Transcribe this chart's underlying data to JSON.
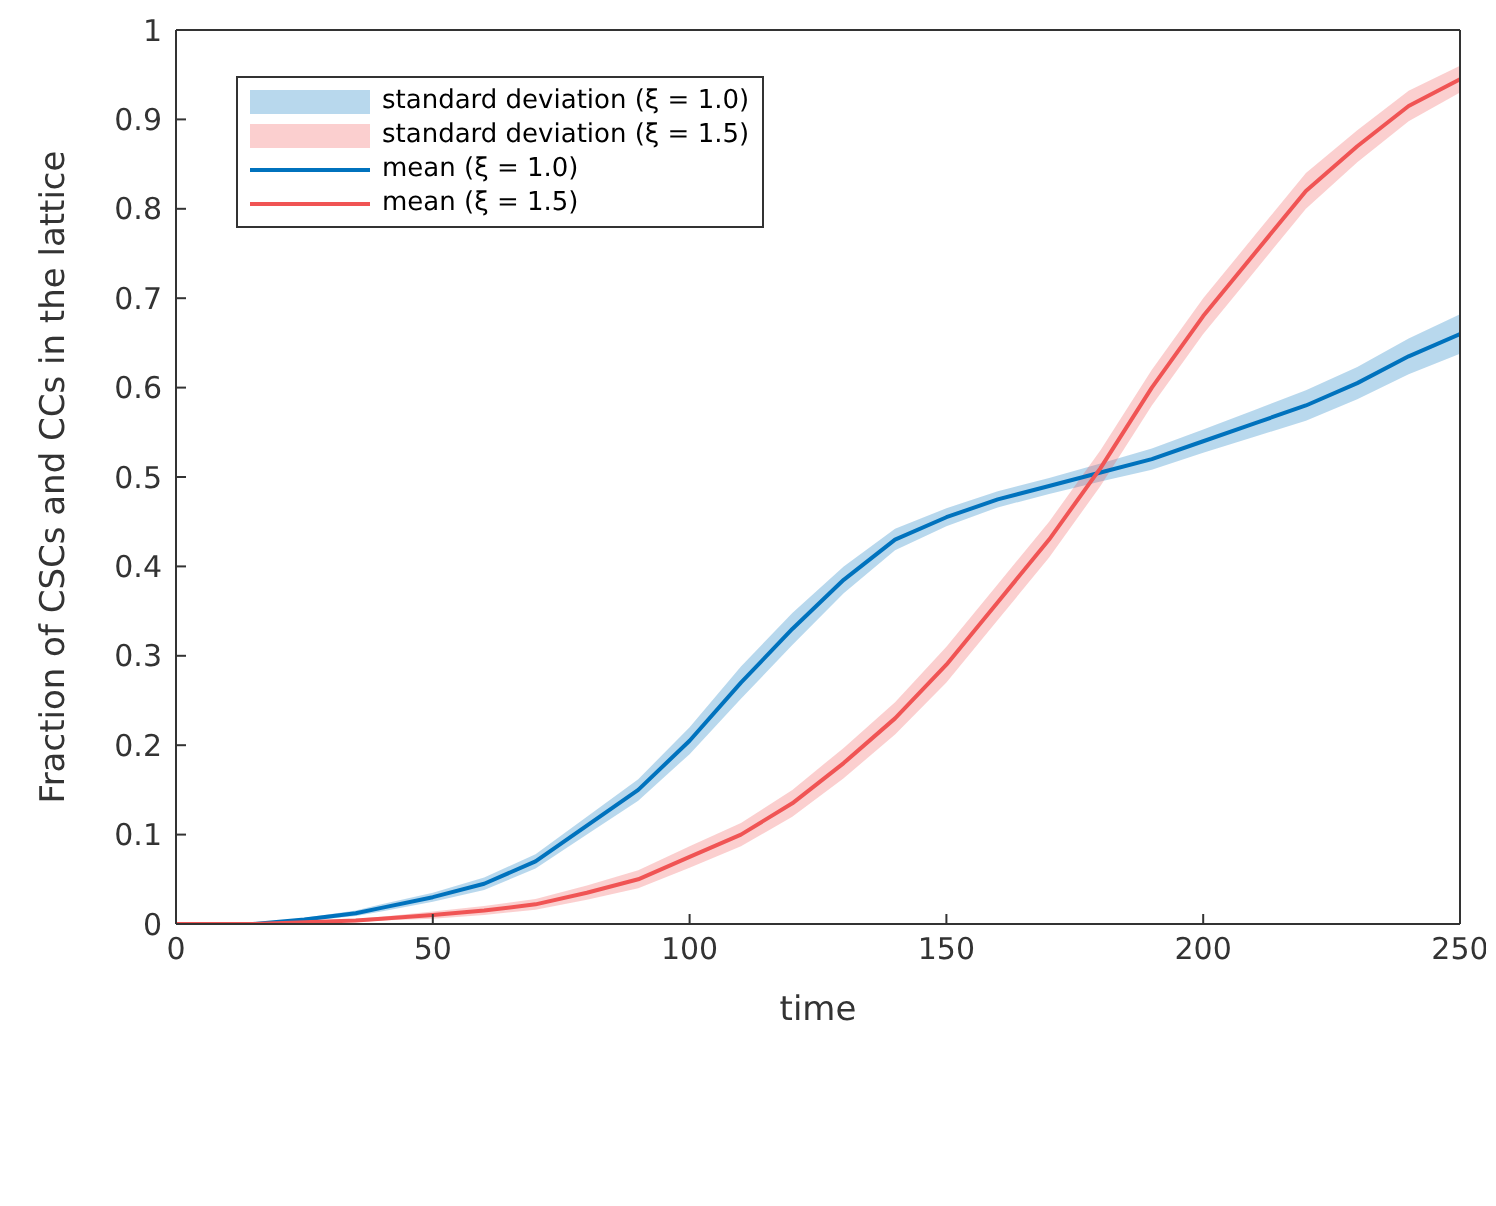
{
  "chart_data": {
    "type": "line",
    "xlabel": "time",
    "ylabel": "Fraction of CSCs and CCs in the lattice",
    "x": [
      0,
      15,
      25,
      35,
      40,
      50,
      60,
      70,
      80,
      90,
      100,
      110,
      120,
      130,
      140,
      150,
      160,
      170,
      180,
      190,
      200,
      210,
      220,
      230,
      240,
      250
    ],
    "xlim": [
      0,
      250
    ],
    "xticks": [
      0,
      50,
      100,
      150,
      200,
      250
    ],
    "ylim": [
      0,
      1
    ],
    "yticks": [
      0,
      0.1,
      0.2,
      0.3,
      0.4,
      0.5,
      0.6,
      0.7,
      0.8,
      0.9,
      1
    ],
    "legend": "top left",
    "marker": "none",
    "line_style": "solid",
    "annotations": [
      "standard deviation (ξ = 1.0)",
      "standard deviation (ξ = 1.5)"
    ],
    "series": [
      {
        "type": "line",
        "name": "mean (ξ = 1.0)",
        "color": "#0072bd",
        "values": [
          0,
          0,
          0.005,
          0.012,
          0.018,
          0.03,
          0.045,
          0.07,
          0.11,
          0.15,
          0.205,
          0.27,
          0.33,
          0.385,
          0.43,
          0.455,
          0.475,
          0.49,
          0.505,
          0.52,
          0.54,
          0.56,
          0.58,
          0.605,
          0.635,
          0.66
        ],
        "lower": [
          0,
          0,
          0.003,
          0.009,
          0.014,
          0.025,
          0.038,
          0.062,
          0.1,
          0.138,
          0.19,
          0.252,
          0.312,
          0.37,
          0.418,
          0.445,
          0.466,
          0.481,
          0.495,
          0.508,
          0.527,
          0.545,
          0.563,
          0.587,
          0.615,
          0.638
        ],
        "upper": [
          0,
          0,
          0.007,
          0.015,
          0.022,
          0.035,
          0.052,
          0.078,
          0.12,
          0.162,
          0.22,
          0.288,
          0.348,
          0.4,
          0.442,
          0.465,
          0.484,
          0.499,
          0.515,
          0.532,
          0.553,
          0.575,
          0.597,
          0.623,
          0.655,
          0.682
        ]
      },
      {
        "type": "line",
        "name": "mean (ξ = 1.5)",
        "color": "#f05454",
        "values": [
          0,
          0,
          0.002,
          0.004,
          0.006,
          0.01,
          0.015,
          0.022,
          0.035,
          0.05,
          0.075,
          0.1,
          0.135,
          0.18,
          0.23,
          0.29,
          0.36,
          0.43,
          0.51,
          0.6,
          0.68,
          0.75,
          0.82,
          0.87,
          0.915,
          0.945
        ],
        "lower": [
          0,
          0,
          0.001,
          0.002,
          0.004,
          0.006,
          0.01,
          0.016,
          0.027,
          0.04,
          0.063,
          0.087,
          0.12,
          0.163,
          0.212,
          0.27,
          0.34,
          0.41,
          0.49,
          0.58,
          0.66,
          0.73,
          0.8,
          0.852,
          0.898,
          0.93
        ],
        "upper": [
          0,
          0,
          0.003,
          0.006,
          0.008,
          0.014,
          0.02,
          0.028,
          0.043,
          0.06,
          0.087,
          0.113,
          0.15,
          0.197,
          0.248,
          0.31,
          0.38,
          0.45,
          0.53,
          0.62,
          0.7,
          0.77,
          0.84,
          0.888,
          0.932,
          0.96
        ]
      }
    ]
  }
}
